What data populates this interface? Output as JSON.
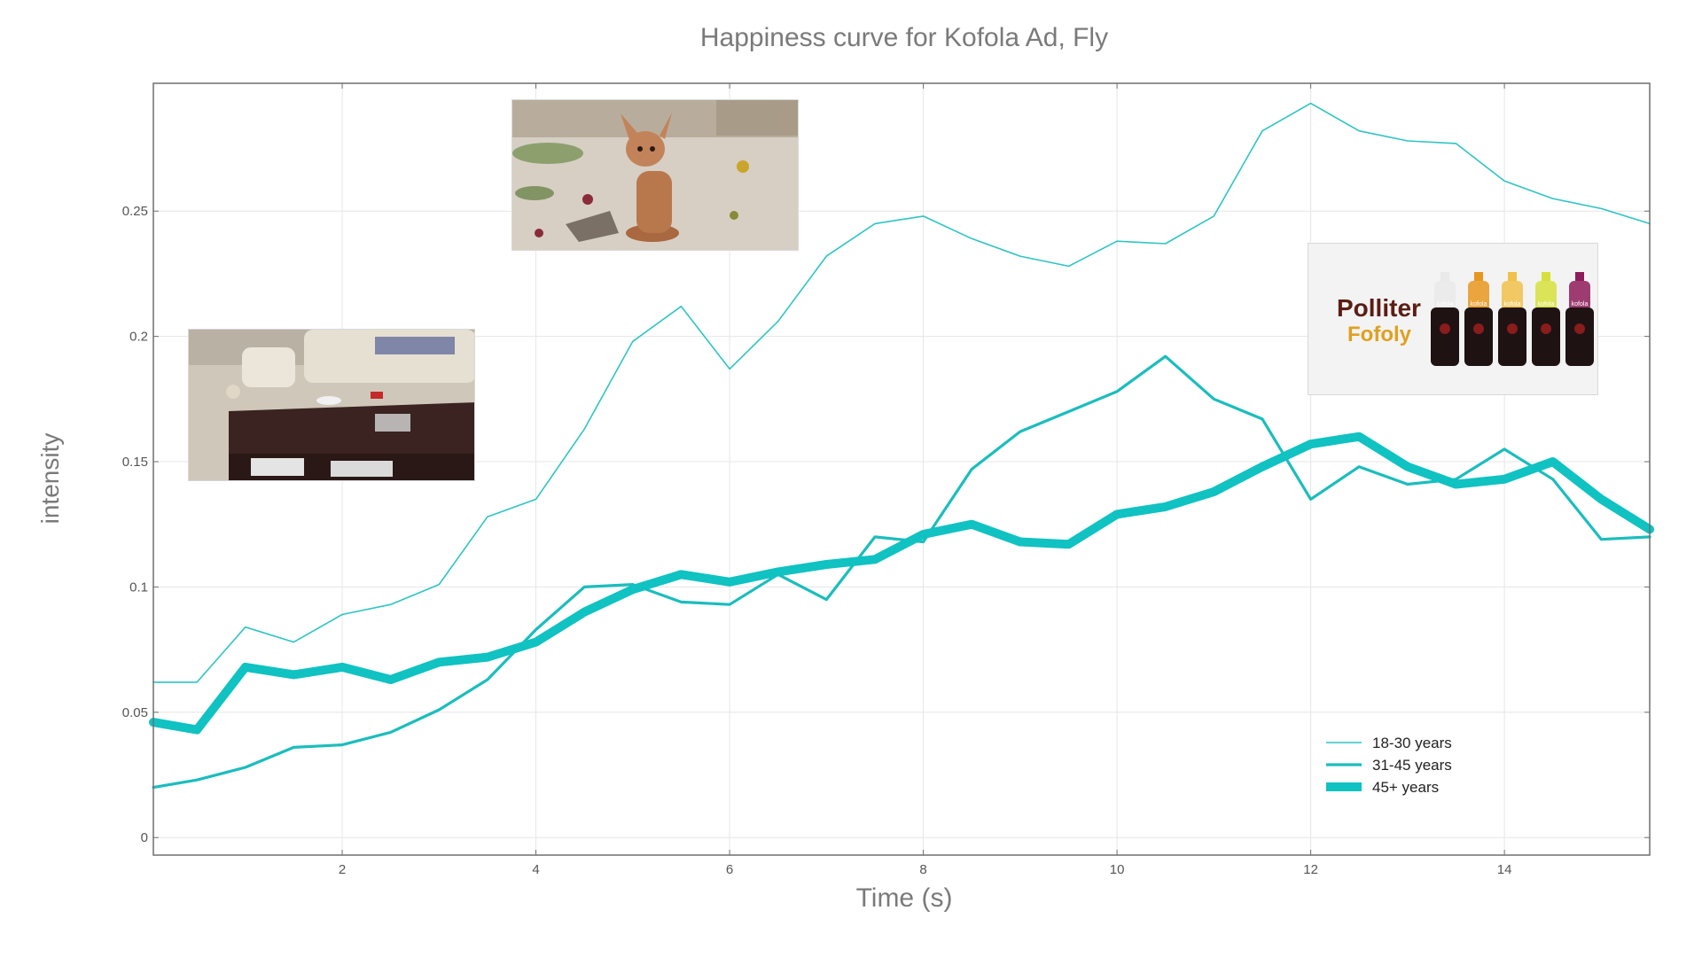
{
  "chart_data": {
    "type": "line",
    "title": "Happiness curve for Kofola Ad, Fly",
    "xlabel": "Time (s)",
    "ylabel": "intensity",
    "xlim": [
      0.05,
      15.5
    ],
    "ylim": [
      -0.007,
      0.301
    ],
    "xticks": [
      2,
      4,
      6,
      8,
      10,
      12,
      14
    ],
    "yticks": [
      0,
      0.05,
      0.1,
      0.15,
      0.2,
      0.25
    ],
    "ytick_labels": [
      "0",
      "0.05",
      "0.1",
      "0.15",
      "0.2",
      "0.25"
    ],
    "grid": true,
    "legend_position": "bottom-right",
    "x": [
      0.05,
      0.5,
      1,
      1.5,
      2,
      2.5,
      3,
      3.5,
      4,
      4.5,
      5,
      5.5,
      6,
      6.5,
      7,
      7.5,
      8,
      8.5,
      9,
      9.5,
      10,
      10.5,
      11,
      11.5,
      12,
      12.5,
      13,
      13.5,
      14,
      14.5,
      15,
      15.5
    ],
    "series": [
      {
        "name": "18-30 years",
        "color": "#2ec4c4",
        "values": [
          0.062,
          0.062,
          0.084,
          0.078,
          0.089,
          0.093,
          0.101,
          0.128,
          0.135,
          0.163,
          0.198,
          0.212,
          0.187,
          0.206,
          0.232,
          0.245,
          0.248,
          0.239,
          0.232,
          0.228,
          0.238,
          0.237,
          0.248,
          0.282,
          0.293,
          0.282,
          0.278,
          0.277,
          0.262,
          0.255,
          0.251,
          0.245
        ]
      },
      {
        "name": "31-45 years",
        "color": "#1bbdbd",
        "values": [
          0.02,
          0.023,
          0.028,
          0.036,
          0.037,
          0.042,
          0.051,
          0.063,
          0.083,
          0.1,
          0.101,
          0.094,
          0.093,
          0.105,
          0.095,
          0.12,
          0.118,
          0.147,
          0.162,
          0.17,
          0.178,
          0.192,
          0.175,
          0.167,
          0.135,
          0.148,
          0.141,
          0.143,
          0.155,
          0.143,
          0.119,
          0.12
        ]
      },
      {
        "name": "45+ years",
        "color": "#10c2c2",
        "values": [
          0.046,
          0.043,
          0.068,
          0.065,
          0.068,
          0.063,
          0.07,
          0.072,
          0.078,
          0.09,
          0.099,
          0.105,
          0.102,
          0.106,
          0.109,
          0.111,
          0.121,
          0.125,
          0.118,
          0.117,
          0.129,
          0.132,
          0.138,
          0.148,
          0.157,
          0.16,
          0.148,
          0.141,
          0.143,
          0.15,
          0.135,
          0.123
        ]
      }
    ]
  },
  "images": {
    "dog_frame": "photo of small hairless dog sitting amid scattered debris",
    "table_frame": "photo of messy living room with dark coffee table",
    "product_frame": {
      "line1": "Polliter",
      "line2": "Fofoly",
      "bottle_labels": [
        "kofola",
        "kofola",
        "kofola",
        "kofola",
        "kofola"
      ],
      "bottle_cap_colors": [
        "#e9e9e9",
        "#e7961f",
        "#f0c04a",
        "#d6e03a",
        "#8e1b5a"
      ]
    }
  }
}
